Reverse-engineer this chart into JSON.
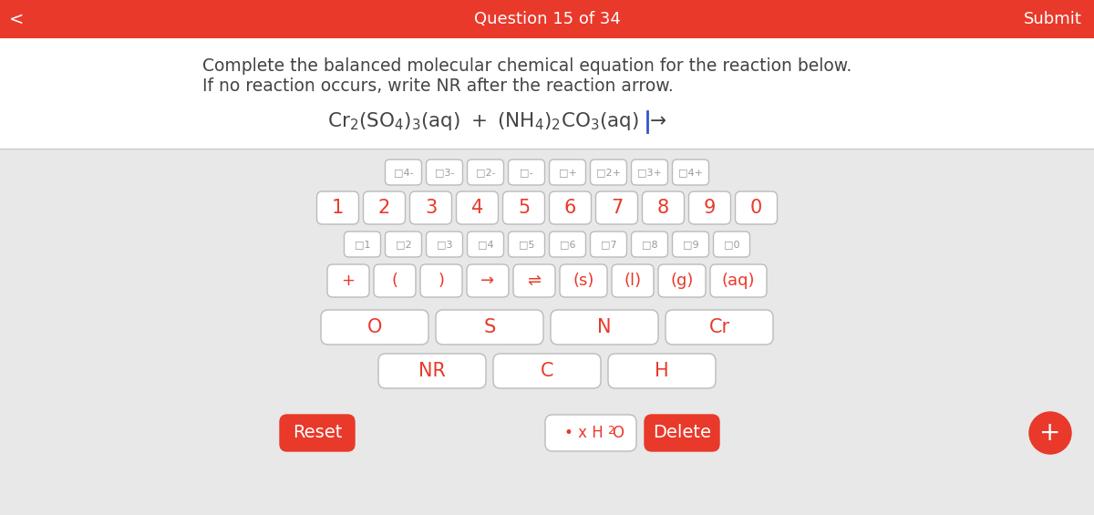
{
  "header_color": "#E8392A",
  "header_text": "Question 15 of 34",
  "header_submit": "Submit",
  "header_back": "<",
  "bg_color": "#E8E8E8",
  "white": "#FFFFFF",
  "red": "#E8392A",
  "gray_text": "#999999",
  "dark_text": "#444444",
  "instruction_line1": "Complete the balanced molecular chemical equation for the reaction below.",
  "instruction_line2": "If no reaction occurs, write NR after the reaction arrow.",
  "charge_row": [
    "□4-",
    "□3-",
    "□2-",
    "□-",
    "□+",
    "□2+",
    "□3+",
    "□4+"
  ],
  "number_row": [
    "1",
    "2",
    "3",
    "4",
    "5",
    "6",
    "7",
    "8",
    "9",
    "0"
  ],
  "subscript_row": [
    "□1",
    "□2",
    "□3",
    "□4",
    "□5",
    "□6",
    "□7",
    "□8",
    "□9",
    "□0"
  ],
  "symbol_row": [
    "+",
    "(",
    ")",
    "→",
    "⇌",
    "(s)",
    "(l)",
    "(g)",
    "(aq)"
  ],
  "element_row1": [
    "O",
    "S",
    "N",
    "Cr"
  ],
  "element_row2": [
    "NR",
    "C",
    "H"
  ],
  "bottom_left": "Reset",
  "bottom_right": "Delete",
  "bottom_far_right": "+"
}
